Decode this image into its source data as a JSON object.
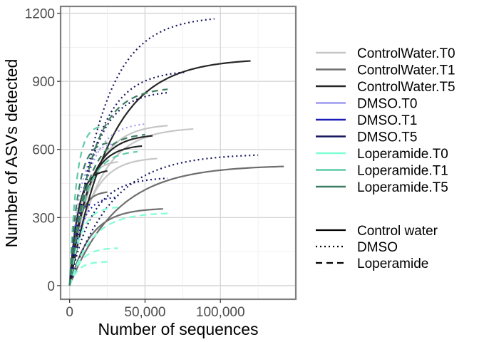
{
  "chart_data": {
    "type": "line",
    "title": "",
    "xlabel": "Number of sequences",
    "ylabel": "Number of ASVs detected",
    "xlim": [
      -6000,
      150000
    ],
    "ylim": [
      -60,
      1230
    ],
    "x_ticks": [
      0,
      50000,
      100000
    ],
    "x_tick_labels": [
      "0",
      "50,000",
      "100,000"
    ],
    "y_ticks": [
      0,
      300,
      600,
      900,
      1200
    ],
    "y_tick_labels": [
      "0",
      "300",
      "600",
      "900",
      "1200"
    ],
    "grid": true,
    "legend_position": "right",
    "colors": {
      "ControlWater.T0": "#c6c6c6",
      "ControlWater.T1": "#6e6e6e",
      "ControlWater.T5": "#262626",
      "DMSO.T0": "#9e9af0",
      "DMSO.T1": "#1d1db8",
      "DMSO.T5": "#15155e",
      "Loperamide.T0": "#7fffd4",
      "Loperamide.T1": "#5fcaa6",
      "Loperamide.T5": "#3e7d62"
    },
    "linetypes": {
      "Control water": "solid",
      "DMSO": "dotted",
      "Loperamide": "dashed"
    },
    "legend_color": [
      "ControlWater.T0",
      "ControlWater.T1",
      "ControlWater.T5",
      "DMSO.T0",
      "DMSO.T1",
      "DMSO.T5",
      "Loperamide.T0",
      "Loperamide.T1",
      "Loperamide.T5"
    ],
    "legend_linetype": [
      "Control water",
      "DMSO",
      "Loperamide"
    ],
    "series": [
      {
        "group": "ControlWater.T0",
        "treatment": "Control water",
        "max_x": 82000,
        "final_y": 690
      },
      {
        "group": "ControlWater.T0",
        "treatment": "Control water",
        "max_x": 65000,
        "final_y": 705
      },
      {
        "group": "ControlWater.T0",
        "treatment": "Control water",
        "max_x": 58000,
        "final_y": 560
      },
      {
        "group": "ControlWater.T0",
        "treatment": "Control water",
        "max_x": 32000,
        "final_y": 545
      },
      {
        "group": "ControlWater.T1",
        "treatment": "Control water",
        "max_x": 142000,
        "final_y": 525
      },
      {
        "group": "ControlWater.T1",
        "treatment": "Control water",
        "max_x": 62000,
        "final_y": 338
      },
      {
        "group": "ControlWater.T1",
        "treatment": "Control water",
        "max_x": 25000,
        "final_y": 412
      },
      {
        "group": "ControlWater.T5",
        "treatment": "Control water",
        "max_x": 120000,
        "final_y": 990
      },
      {
        "group": "ControlWater.T5",
        "treatment": "Control water",
        "max_x": 55000,
        "final_y": 660
      },
      {
        "group": "ControlWater.T5",
        "treatment": "Control water",
        "max_x": 48000,
        "final_y": 615
      },
      {
        "group": "ControlWater.T5",
        "treatment": "Control water",
        "max_x": 25000,
        "final_y": 505
      },
      {
        "group": "DMSO.T0",
        "treatment": "DMSO",
        "max_x": 50000,
        "final_y": 712
      },
      {
        "group": "DMSO.T0",
        "treatment": "DMSO",
        "max_x": 30000,
        "final_y": 625
      },
      {
        "group": "DMSO.T1",
        "treatment": "DMSO",
        "max_x": 32000,
        "final_y": 390
      },
      {
        "group": "DMSO.T1",
        "treatment": "DMSO",
        "max_x": 15000,
        "final_y": 360
      },
      {
        "group": "DMSO.T5",
        "treatment": "DMSO",
        "max_x": 96000,
        "final_y": 1175
      },
      {
        "group": "DMSO.T5",
        "treatment": "DMSO",
        "max_x": 76000,
        "final_y": 940
      },
      {
        "group": "DMSO.T5",
        "treatment": "DMSO",
        "max_x": 125000,
        "final_y": 575
      },
      {
        "group": "DMSO.T5",
        "treatment": "DMSO",
        "max_x": 65000,
        "final_y": 850
      },
      {
        "group": "DMSO.T5",
        "treatment": "DMSO",
        "max_x": 65000,
        "final_y": 473
      },
      {
        "group": "Loperamide.T0",
        "treatment": "Loperamide",
        "max_x": 65000,
        "final_y": 318
      },
      {
        "group": "Loperamide.T0",
        "treatment": "Loperamide",
        "max_x": 32000,
        "final_y": 345
      },
      {
        "group": "Loperamide.T0",
        "treatment": "Loperamide",
        "max_x": 32000,
        "final_y": 165
      },
      {
        "group": "Loperamide.T0",
        "treatment": "Loperamide",
        "max_x": 25000,
        "final_y": 105
      },
      {
        "group": "Loperamide.T1",
        "treatment": "Loperamide",
        "max_x": 45000,
        "final_y": 590
      },
      {
        "group": "Loperamide.T1",
        "treatment": "Loperamide",
        "max_x": 20000,
        "final_y": 700
      },
      {
        "group": "Loperamide.T5",
        "treatment": "Loperamide",
        "max_x": 65000,
        "final_y": 865
      },
      {
        "group": "Loperamide.T5",
        "treatment": "Loperamide",
        "max_x": 50000,
        "final_y": 665
      },
      {
        "group": "Loperamide.T5",
        "treatment": "Loperamide",
        "max_x": 25000,
        "final_y": 628
      }
    ]
  }
}
